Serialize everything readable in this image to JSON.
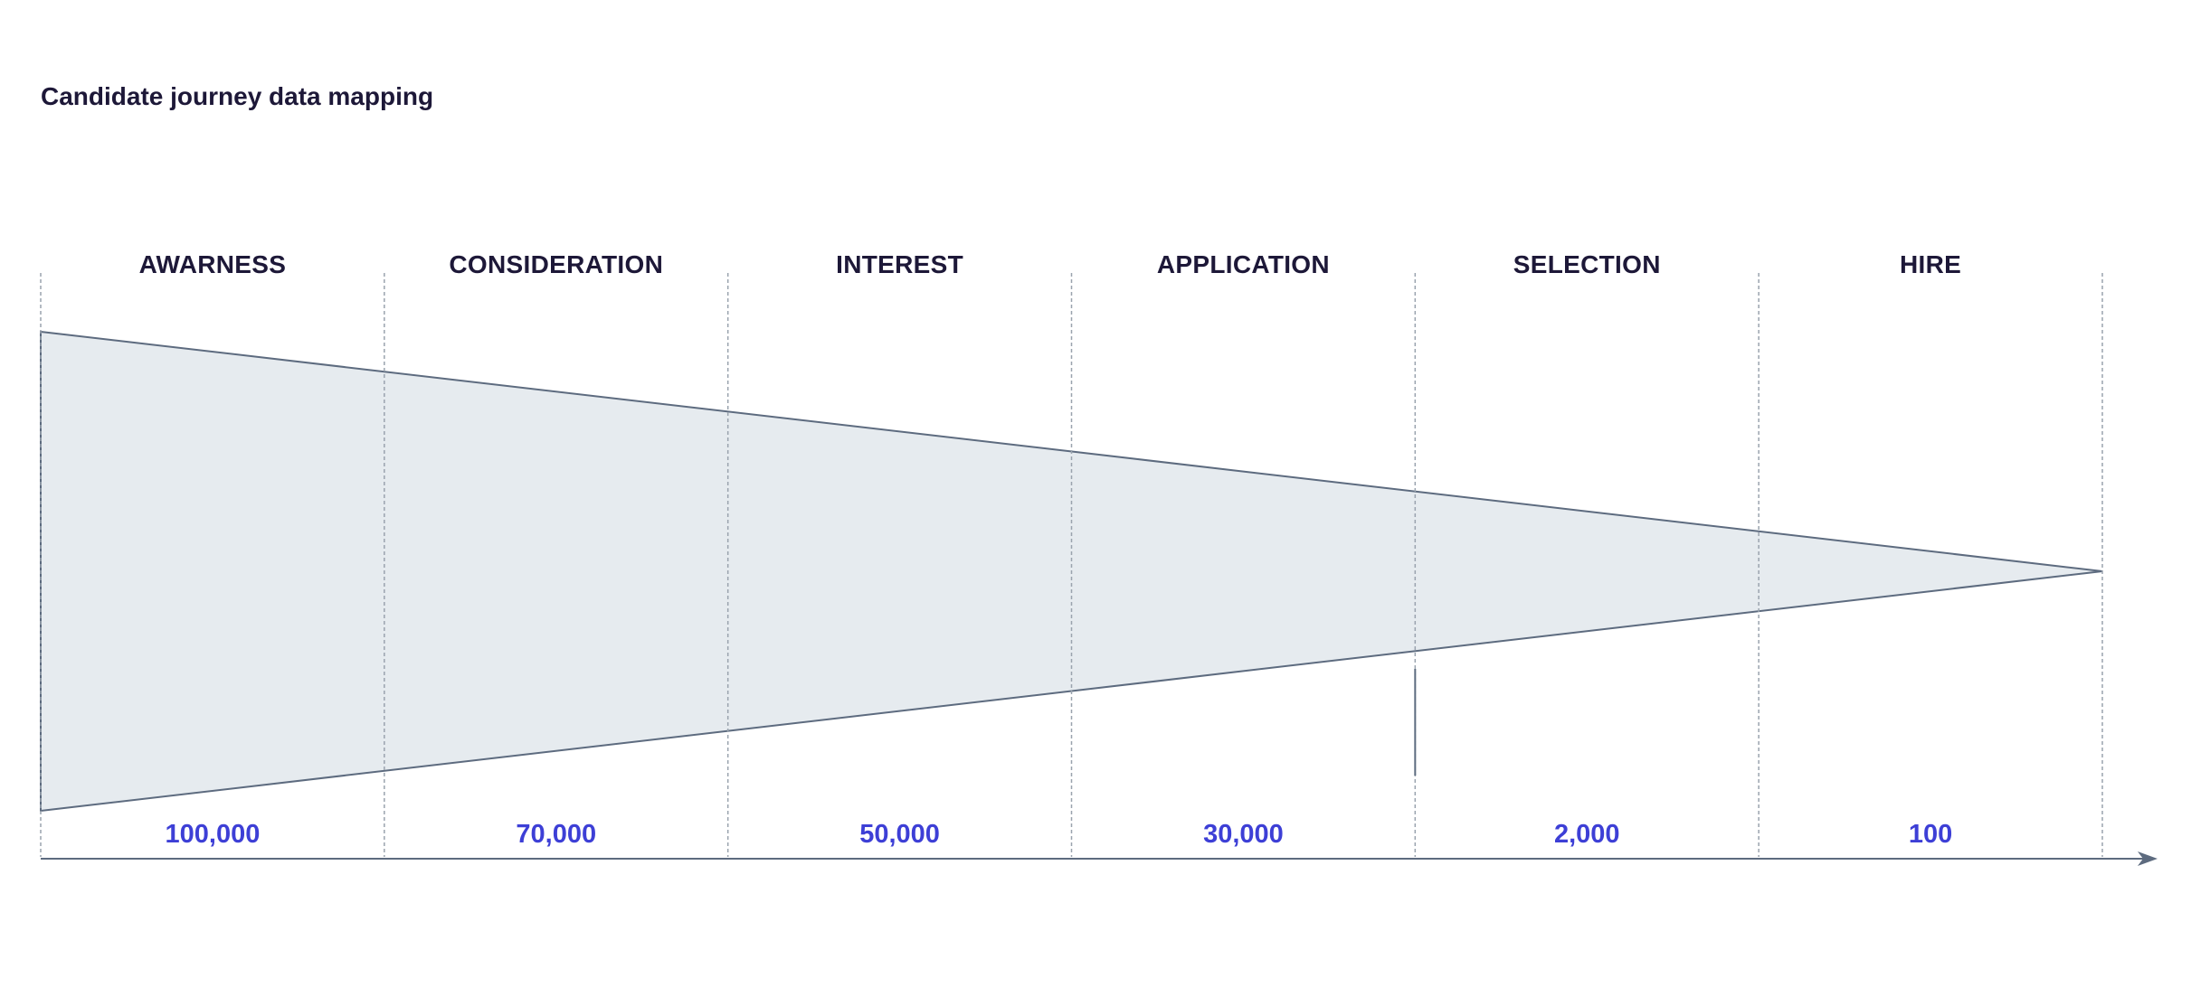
{
  "colors": {
    "title": "#1d1838",
    "stage_label": "#1d1838",
    "value_label": "#3d3fd6",
    "funnel_fill": "#e6ebef",
    "funnel_stroke": "#5d6b7f",
    "divider": "#9aa3ae",
    "axis": "#5d6b7f"
  },
  "chart_data": {
    "type": "funnel",
    "title": "Candidate journey data mapping",
    "categories": [
      "AWARNESS",
      "CONSIDERATION",
      "INTEREST",
      "APPLICATION",
      "SELECTION",
      "HIRE"
    ],
    "value_labels": [
      "100,000",
      "70,000",
      "50,000",
      "30,000",
      "2,000",
      "100"
    ],
    "values": [
      100000,
      70000,
      50000,
      30000,
      2000,
      100
    ],
    "grid": "vertical dashed dividers between stages",
    "axis": "horizontal arrow along the bottom",
    "legend": "none"
  }
}
